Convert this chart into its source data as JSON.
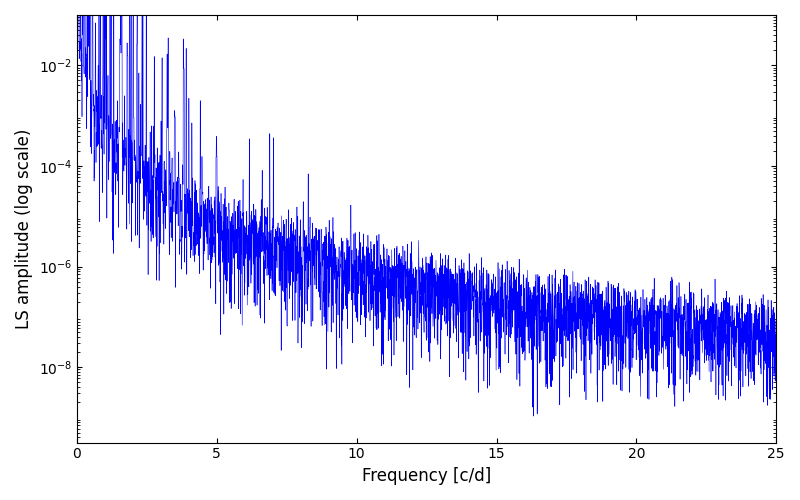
{
  "xlabel": "Frequency [c/d]",
  "ylabel": "LS amplitude (log scale)",
  "xlim": [
    0,
    25
  ],
  "ylim_log": [
    -9.5,
    -1.0
  ],
  "line_color": "#0000ff",
  "line_width": 0.4,
  "background_color": "#ffffff",
  "yticks": [
    1e-08,
    1e-06,
    0.0001,
    0.01
  ],
  "xticks": [
    0,
    5,
    10,
    15,
    20,
    25
  ],
  "seed": 42,
  "n_points": 4000,
  "freq_max": 25.0,
  "base_power_slope": -2.5,
  "noise_floor_log": -6.0,
  "spike_amplitude": 2.0
}
